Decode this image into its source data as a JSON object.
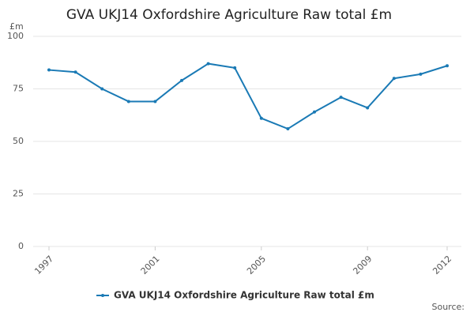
{
  "chart_data": {
    "type": "line",
    "title": "GVA UKJ14 Oxfordshire Agriculture Raw total £m",
    "y_unit": "£m",
    "source_label": "Source:",
    "x": [
      1997,
      1998,
      1999,
      2000,
      2001,
      2002,
      2003,
      2004,
      2005,
      2006,
      2007,
      2008,
      2009,
      2010,
      2011,
      2012
    ],
    "series": [
      {
        "name": "GVA UKJ14 Oxfordshire Agriculture Raw total £m",
        "color": "#1a7ab5",
        "values": [
          84,
          83,
          75,
          69,
          69,
          79,
          87,
          85,
          61,
          56,
          64,
          71,
          66,
          80,
          82,
          86
        ]
      }
    ],
    "xlim": [
      1997,
      2012
    ],
    "xticks": [
      1997,
      2001,
      2005,
      2009,
      2012
    ],
    "ylim": [
      0,
      100
    ],
    "yticks": [
      0,
      25,
      50,
      75,
      100
    ],
    "grid": true,
    "legend": "bottom"
  }
}
